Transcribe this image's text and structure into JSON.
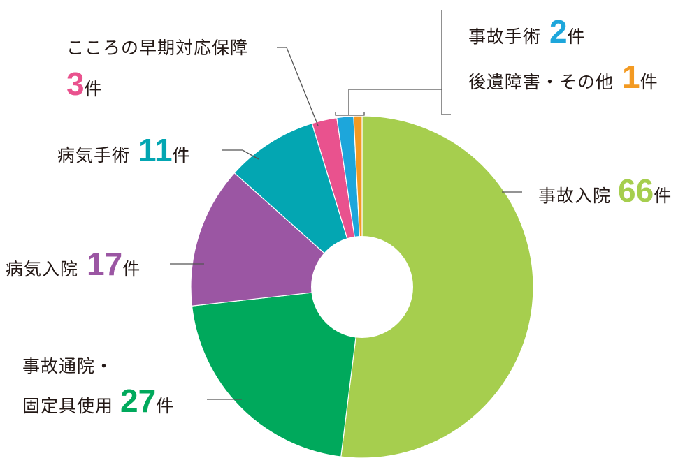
{
  "chart_data": {
    "type": "pie",
    "title": "",
    "unit": "件",
    "slices": [
      {
        "label": "事故入院",
        "value": 66,
        "color": "#a6ce4e"
      },
      {
        "label": "事故通院・固定具使用",
        "label_lines": [
          "事故通院・",
          "固定具使用"
        ],
        "value": 27,
        "color": "#00a95c"
      },
      {
        "label": "病気入院",
        "value": 17,
        "color": "#9b56a3"
      },
      {
        "label": "病気手術",
        "value": 11,
        "color": "#03a6b2"
      },
      {
        "label": "こころの早期対応保障",
        "value": 3,
        "color": "#e9528e"
      },
      {
        "label": "事故手術",
        "value": 2,
        "color": "#1da6db"
      },
      {
        "label": "後遺障害・その他",
        "value": 1,
        "color": "#f39a22"
      }
    ]
  }
}
